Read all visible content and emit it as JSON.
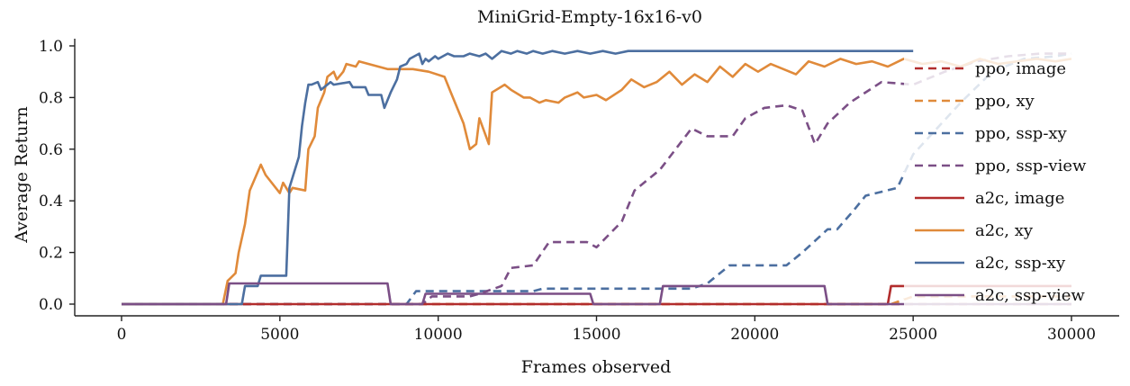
{
  "chart_data": {
    "type": "line",
    "title": "MiniGrid-Empty-16x16-v0",
    "xlabel": "Frames observed",
    "ylabel": "Average Return",
    "xlim": [
      0,
      30000
    ],
    "ylim": [
      0,
      1.0
    ],
    "xticks": [
      0,
      5000,
      10000,
      15000,
      20000,
      25000,
      30000
    ],
    "yticks": [
      0.0,
      0.2,
      0.4,
      0.6,
      0.8,
      1.0
    ],
    "xtick_labels": [
      "0",
      "5000",
      "10000",
      "15000",
      "20000",
      "25000",
      "30000"
    ],
    "ytick_labels": [
      "0.0",
      "0.2",
      "0.4",
      "0.6",
      "0.8",
      "1.0"
    ],
    "grid": false,
    "legend_position": "right",
    "series": [
      {
        "name": "ppo, image",
        "color": "#b22d2d",
        "dash": "dashed",
        "x": [
          0,
          30000
        ],
        "y": [
          0.0,
          0.0
        ]
      },
      {
        "name": "ppo, xy",
        "color": "#e08a3a",
        "dash": "dashed",
        "x": [
          0,
          24300,
          25000,
          30000
        ],
        "y": [
          0.0,
          0.0,
          0.03,
          0.03
        ]
      },
      {
        "name": "ppo, ssp-xy",
        "color": "#4c6fa0",
        "dash": "dashed",
        "x": [
          0,
          9000,
          9300,
          13000,
          13300,
          18000,
          18500,
          19000,
          19200,
          21000,
          21500,
          22300,
          22600,
          23100,
          23500,
          24500,
          25000,
          26500,
          27500,
          28500,
          29500,
          30000
        ],
        "y": [
          0.0,
          0.0,
          0.05,
          0.05,
          0.06,
          0.06,
          0.08,
          0.13,
          0.15,
          0.15,
          0.2,
          0.29,
          0.29,
          0.36,
          0.42,
          0.45,
          0.58,
          0.78,
          0.9,
          0.95,
          0.96,
          0.97
        ]
      },
      {
        "name": "ppo, ssp-view",
        "color": "#7b4f86",
        "dash": "dashed",
        "x": [
          0,
          9500,
          9800,
          11000,
          11300,
          12000,
          12300,
          13000,
          13500,
          14700,
          15000,
          15800,
          16200,
          17000,
          17500,
          18000,
          18500,
          19300,
          19700,
          20300,
          21000,
          21500,
          21900,
          22300,
          23000,
          24000,
          25000,
          26000,
          27000,
          28000,
          29000,
          30000
        ],
        "y": [
          0.0,
          0.0,
          0.03,
          0.03,
          0.04,
          0.07,
          0.14,
          0.15,
          0.24,
          0.24,
          0.22,
          0.32,
          0.44,
          0.52,
          0.6,
          0.68,
          0.65,
          0.65,
          0.72,
          0.76,
          0.77,
          0.75,
          0.62,
          0.7,
          0.78,
          0.86,
          0.85,
          0.9,
          0.94,
          0.96,
          0.97,
          0.97
        ]
      },
      {
        "name": "a2c, image",
        "color": "#b22d2d",
        "dash": "solid",
        "x": [
          0,
          24200,
          24300,
          30000
        ],
        "y": [
          0.0,
          0.0,
          0.07,
          0.07
        ]
      },
      {
        "name": "a2c, xy",
        "color": "#e08a3a",
        "dash": "solid",
        "x": [
          0,
          3200,
          3350,
          3600,
          3700,
          3900,
          4050,
          4400,
          4550,
          5000,
          5100,
          5300,
          5400,
          5800,
          5900,
          6100,
          6200,
          6400,
          6500,
          6700,
          6800,
          7000,
          7100,
          7400,
          7500,
          8400,
          8600,
          9200,
          9700,
          10200,
          10400,
          10800,
          11000,
          11200,
          11300,
          11600,
          11700,
          12100,
          12300,
          12700,
          12900,
          13200,
          13400,
          13800,
          14000,
          14400,
          14600,
          15000,
          15300,
          15800,
          16100,
          16500,
          16900,
          17300,
          17700,
          18100,
          18500,
          18900,
          19300,
          19700,
          20100,
          20500,
          20900,
          21300,
          21700,
          22200,
          22700,
          23200,
          23700,
          24200,
          24700,
          25300,
          25900,
          26500,
          27100,
          27700,
          28300,
          28900,
          29500,
          30000
        ],
        "y": [
          0.0,
          0.0,
          0.09,
          0.12,
          0.2,
          0.31,
          0.44,
          0.54,
          0.5,
          0.43,
          0.47,
          0.43,
          0.45,
          0.44,
          0.6,
          0.65,
          0.76,
          0.82,
          0.88,
          0.9,
          0.87,
          0.9,
          0.93,
          0.92,
          0.94,
          0.91,
          0.91,
          0.91,
          0.9,
          0.88,
          0.82,
          0.7,
          0.6,
          0.62,
          0.72,
          0.62,
          0.82,
          0.85,
          0.83,
          0.8,
          0.8,
          0.78,
          0.79,
          0.78,
          0.8,
          0.82,
          0.8,
          0.81,
          0.79,
          0.83,
          0.87,
          0.84,
          0.86,
          0.9,
          0.85,
          0.89,
          0.86,
          0.92,
          0.88,
          0.93,
          0.9,
          0.93,
          0.91,
          0.89,
          0.94,
          0.92,
          0.95,
          0.93,
          0.94,
          0.92,
          0.95,
          0.93,
          0.94,
          0.92,
          0.95,
          0.93,
          0.94,
          0.95,
          0.94,
          0.95
        ]
      },
      {
        "name": "a2c, ssp-xy",
        "color": "#4c6fa0",
        "dash": "solid",
        "x": [
          0,
          3800,
          3900,
          4300,
          4400,
          5200,
          5300,
          5600,
          5700,
          5800,
          5900,
          6000,
          6200,
          6300,
          6600,
          6700,
          7200,
          7300,
          7700,
          7800,
          8200,
          8300,
          8500,
          8700,
          8800,
          9000,
          9100,
          9400,
          9500,
          9600,
          9700,
          9900,
          10000,
          10300,
          10500,
          10800,
          11000,
          11300,
          11500,
          11700,
          12000,
          12300,
          12500,
          12800,
          13000,
          13300,
          13600,
          14000,
          14400,
          14800,
          15200,
          15600,
          16000,
          16500,
          17000,
          17500,
          18000,
          19000,
          20000,
          21000,
          22000,
          23000,
          24000,
          25000
        ],
        "y": [
          0.0,
          0.0,
          0.07,
          0.07,
          0.11,
          0.11,
          0.45,
          0.57,
          0.69,
          0.78,
          0.85,
          0.85,
          0.86,
          0.83,
          0.86,
          0.85,
          0.86,
          0.84,
          0.84,
          0.81,
          0.81,
          0.76,
          0.82,
          0.87,
          0.92,
          0.93,
          0.95,
          0.97,
          0.93,
          0.95,
          0.94,
          0.96,
          0.95,
          0.97,
          0.96,
          0.96,
          0.97,
          0.96,
          0.97,
          0.95,
          0.98,
          0.97,
          0.98,
          0.97,
          0.98,
          0.97,
          0.98,
          0.97,
          0.98,
          0.97,
          0.98,
          0.97,
          0.98,
          0.98,
          0.98,
          0.98,
          0.98,
          0.98,
          0.98,
          0.98,
          0.98,
          0.98,
          0.98,
          0.98
        ]
      },
      {
        "name": "a2c, ssp-view",
        "color": "#7b4f86",
        "dash": "solid",
        "x": [
          0,
          3300,
          3400,
          8400,
          8500,
          9500,
          9600,
          14800,
          14900,
          17000,
          17100,
          22200,
          22300,
          30000
        ],
        "y": [
          0.0,
          0.0,
          0.08,
          0.08,
          0.0,
          0.0,
          0.04,
          0.04,
          0.0,
          0.0,
          0.07,
          0.07,
          0.0,
          0.0
        ]
      }
    ]
  }
}
